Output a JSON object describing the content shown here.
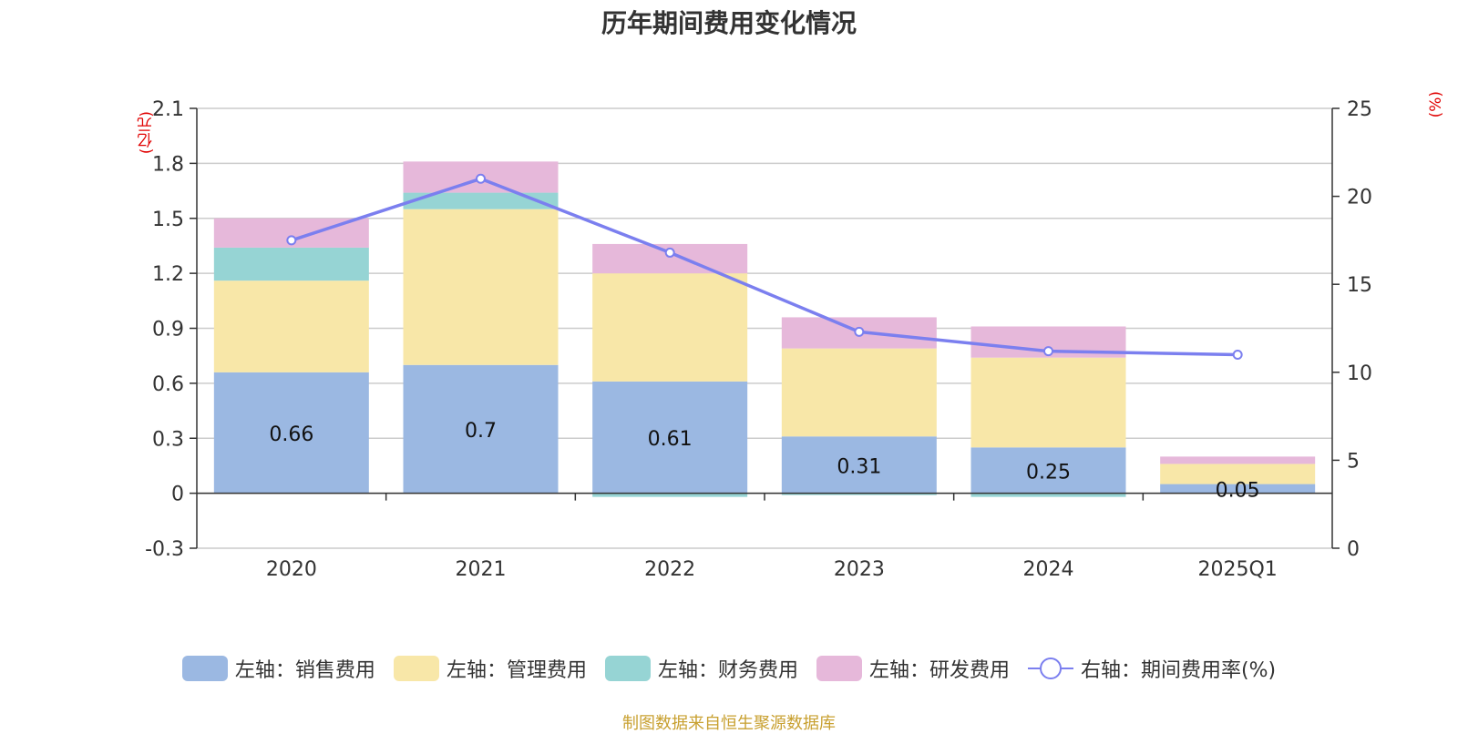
{
  "title": "历年期间费用变化情况",
  "source_note": "制图数据来自恒生聚源数据库",
  "chart_data": {
    "type": "bar",
    "stacked": true,
    "categories": [
      "2020",
      "2021",
      "2022",
      "2023",
      "2024",
      "2025Q1"
    ],
    "left_axis": {
      "unit": "(亿元)",
      "ylim": [
        -0.3,
        2.1
      ],
      "ticks": [
        "-0.3",
        "0",
        "0.3",
        "0.6",
        "0.9",
        "1.2",
        "1.5",
        "1.8",
        "2.1"
      ]
    },
    "right_axis": {
      "unit": "(%)",
      "ylim": [
        0,
        25
      ],
      "ticks": [
        "0",
        "5",
        "10",
        "15",
        "20",
        "25"
      ]
    },
    "series": [
      {
        "name": "左轴：销售费用",
        "axis": "left",
        "color": "#9bb8e2",
        "values": [
          0.66,
          0.7,
          0.61,
          0.31,
          0.25,
          0.05
        ],
        "data_labels": [
          "0.66",
          "0.7",
          "0.61",
          "0.31",
          "0.25",
          "0.05"
        ]
      },
      {
        "name": "左轴：管理费用",
        "axis": "left",
        "color": "#f8e7a8",
        "values": [
          0.5,
          0.85,
          0.59,
          0.48,
          0.49,
          0.11
        ]
      },
      {
        "name": "左轴：财务费用",
        "axis": "left",
        "color": "#96d4d4",
        "values": [
          0.18,
          0.09,
          -0.02,
          -0.01,
          -0.02,
          0.0
        ]
      },
      {
        "name": "左轴：研发费用",
        "axis": "left",
        "color": "#e6b8da",
        "values": [
          0.16,
          0.17,
          0.16,
          0.17,
          0.17,
          0.04
        ]
      },
      {
        "name": "右轴：期间费用率(%)",
        "axis": "right",
        "type": "line",
        "color": "#7b7fef",
        "values": [
          17.5,
          21.0,
          16.8,
          12.3,
          11.2,
          11.0
        ]
      }
    ],
    "grid": true,
    "legend_position": "bottom"
  }
}
